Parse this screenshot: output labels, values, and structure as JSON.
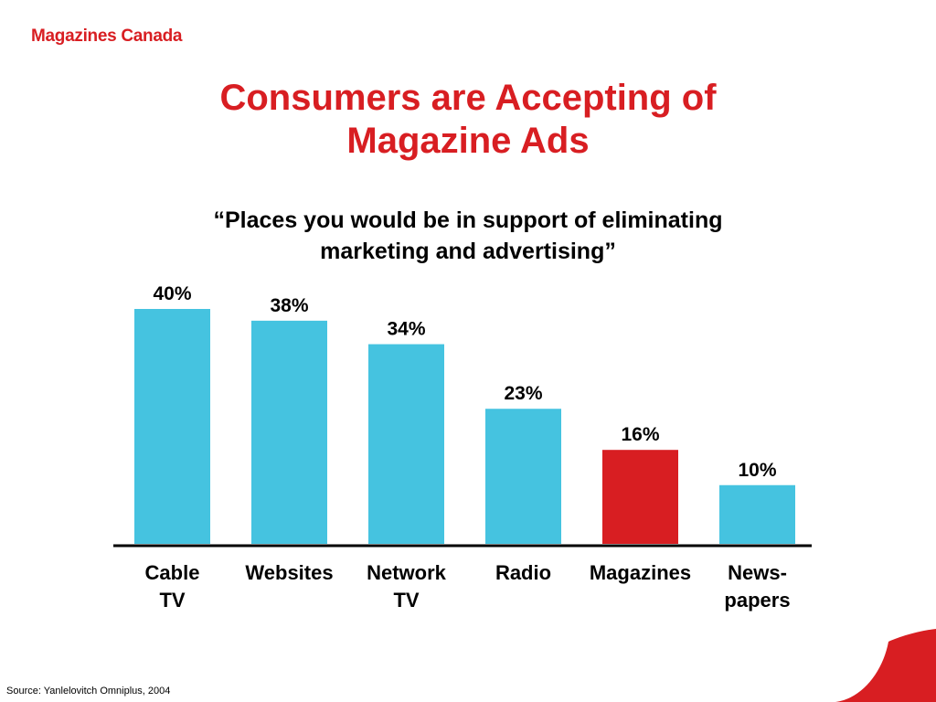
{
  "header": {
    "logo_text": "Magazines Canada",
    "title_line1": "Consumers are Accepting of",
    "title_line2": "Magazine Ads",
    "subtitle_line1": "“Places you would be in support of eliminating",
    "subtitle_line2": "marketing and advertising”"
  },
  "footer": {
    "source": "Source: Yanlelovitch Omniplus, 2004"
  },
  "colors": {
    "bar_default": "#45c3e0",
    "bar_highlight": "#d81e22",
    "brand_red": "#d81e22",
    "axis": "#000000"
  },
  "chart_data": {
    "type": "bar",
    "title": "",
    "xlabel": "",
    "ylabel": "",
    "ylim": [
      0,
      40
    ],
    "grid": false,
    "categories": [
      {
        "label_lines": [
          "Cable",
          "TV"
        ]
      },
      {
        "label_lines": [
          "Websites"
        ]
      },
      {
        "label_lines": [
          "Network",
          "TV"
        ]
      },
      {
        "label_lines": [
          "Radio"
        ]
      },
      {
        "label_lines": [
          "Magazines"
        ]
      },
      {
        "label_lines": [
          "News-",
          "papers"
        ]
      }
    ],
    "values": [
      40,
      38,
      34,
      23,
      16,
      10
    ],
    "value_labels": [
      "40%",
      "38%",
      "34%",
      "23%",
      "16%",
      "10%"
    ],
    "highlight_index": 4
  }
}
